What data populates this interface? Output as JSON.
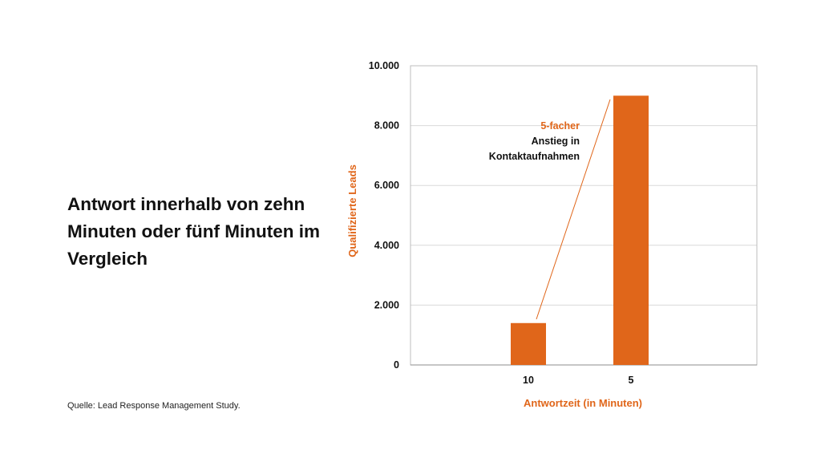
{
  "slide": {
    "headline": "Antwort innerhalb von zehn Minuten oder fünf Minuten im Vergleich",
    "source": "Quelle: Lead Response Management Study."
  },
  "chart_data": {
    "type": "bar",
    "title": "",
    "xlabel": "Antwortzeit (in Minuten)",
    "ylabel": "Qualifizierte Leads",
    "categories": [
      "10",
      "5"
    ],
    "values": [
      1400,
      9000
    ],
    "ylim": [
      0,
      10000
    ],
    "yticks": [
      0,
      2000,
      4000,
      6000,
      8000,
      10000
    ],
    "ytick_labels": [
      "0",
      "2.000",
      "4.000",
      "6.000",
      "8.000",
      "10.000"
    ],
    "grid": true,
    "bar_color": "#E0661A",
    "axis_title_color": "#E0661A",
    "annotation": {
      "highlight": "5-facher",
      "lines": [
        "Anstieg in",
        "Kontaktaufnahmen"
      ],
      "color": "#E0661A"
    }
  }
}
